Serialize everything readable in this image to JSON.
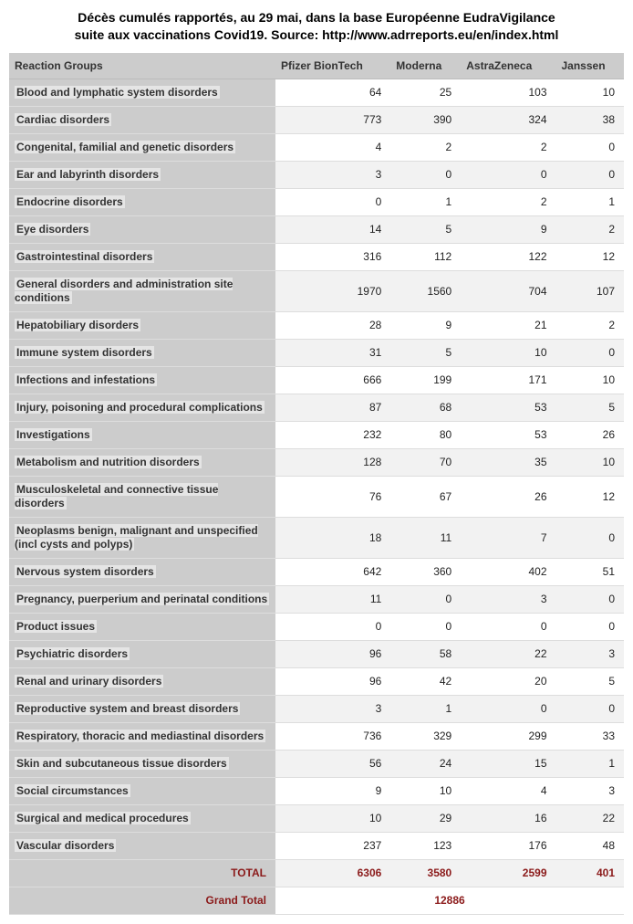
{
  "title_line1": "Décès cumulés rapportés, au 29 mai, dans la base Européenne EudraVigilance",
  "title_line2": "suite aux vaccinations Covid19. Source: http://www.adrreports.eu/en/index.html",
  "columns": [
    "Reaction Groups",
    "Pfizer BionTech",
    "Moderna",
    "AstraZeneca",
    "Janssen"
  ],
  "rows": [
    {
      "label": "Blood and lymphatic system disorders",
      "v": [
        64,
        25,
        103,
        10
      ]
    },
    {
      "label": "Cardiac disorders",
      "v": [
        773,
        390,
        324,
        38
      ]
    },
    {
      "label": "Congenital, familial and genetic disorders",
      "v": [
        4,
        2,
        2,
        0
      ]
    },
    {
      "label": "Ear and labyrinth disorders",
      "v": [
        3,
        0,
        0,
        0
      ]
    },
    {
      "label": "Endocrine disorders",
      "v": [
        0,
        1,
        2,
        1
      ]
    },
    {
      "label": "Eye disorders",
      "v": [
        14,
        5,
        9,
        2
      ]
    },
    {
      "label": "Gastrointestinal disorders",
      "v": [
        316,
        112,
        122,
        12
      ]
    },
    {
      "label": "General disorders and administration site conditions",
      "v": [
        1970,
        1560,
        704,
        107
      ]
    },
    {
      "label": "Hepatobiliary disorders",
      "v": [
        28,
        9,
        21,
        2
      ]
    },
    {
      "label": "Immune system disorders",
      "v": [
        31,
        5,
        10,
        0
      ]
    },
    {
      "label": "Infections and infestations",
      "v": [
        666,
        199,
        171,
        10
      ]
    },
    {
      "label": "Injury, poisoning and procedural complications",
      "v": [
        87,
        68,
        53,
        5
      ]
    },
    {
      "label": "Investigations",
      "v": [
        232,
        80,
        53,
        26
      ]
    },
    {
      "label": "Metabolism and nutrition disorders",
      "v": [
        128,
        70,
        35,
        10
      ]
    },
    {
      "label": "Musculoskeletal and connective tissue disorders",
      "v": [
        76,
        67,
        26,
        12
      ]
    },
    {
      "label": "Neoplasms benign, malignant and unspecified (incl cysts and polyps)",
      "v": [
        18,
        11,
        7,
        0
      ]
    },
    {
      "label": "Nervous system disorders",
      "v": [
        642,
        360,
        402,
        51
      ]
    },
    {
      "label": "Pregnancy, puerperium and perinatal conditions",
      "v": [
        11,
        0,
        3,
        0
      ]
    },
    {
      "label": "Product issues",
      "v": [
        0,
        0,
        0,
        0
      ]
    },
    {
      "label": "Psychiatric disorders",
      "v": [
        96,
        58,
        22,
        3
      ]
    },
    {
      "label": "Renal and urinary disorders",
      "v": [
        96,
        42,
        20,
        5
      ]
    },
    {
      "label": "Reproductive system and breast disorders",
      "v": [
        3,
        1,
        0,
        0
      ]
    },
    {
      "label": "Respiratory, thoracic and mediastinal disorders",
      "v": [
        736,
        329,
        299,
        33
      ]
    },
    {
      "label": "Skin and subcutaneous tissue disorders",
      "v": [
        56,
        24,
        15,
        1
      ]
    },
    {
      "label": "Social circumstances",
      "v": [
        9,
        10,
        4,
        3
      ]
    },
    {
      "label": "Surgical and medical procedures",
      "v": [
        10,
        29,
        16,
        22
      ]
    },
    {
      "label": "Vascular disorders",
      "v": [
        237,
        123,
        176,
        48
      ]
    }
  ],
  "total_label": "TOTAL",
  "totals": [
    6306,
    3580,
    2599,
    401
  ],
  "grand_total_label": "Grand Total",
  "grand_total": 12886,
  "colors": {
    "header_bg": "#cccccc",
    "row_even_bg": "#f2f2f2",
    "row_odd_bg": "#ffffff",
    "total_text": "#8b1a1a"
  }
}
